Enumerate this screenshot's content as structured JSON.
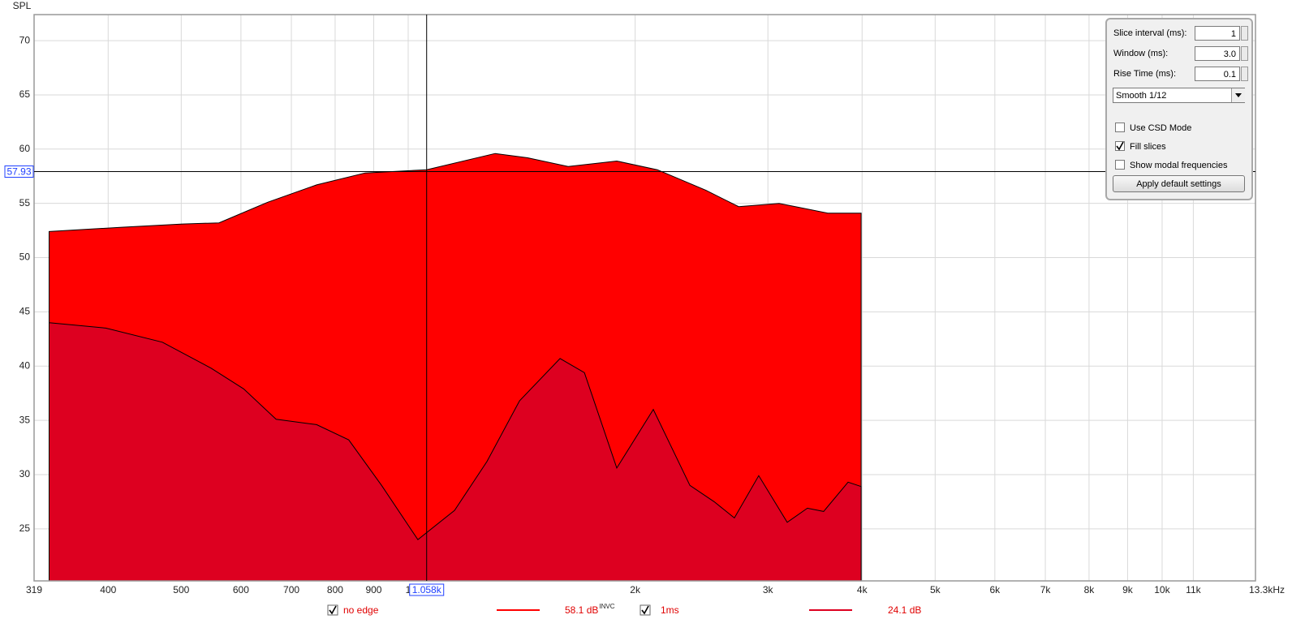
{
  "chart_data": {
    "type": "area",
    "y_label": "SPL",
    "xscale": "log",
    "xlim": [
      319,
      13300
    ],
    "ylim": [
      20.2,
      72.4
    ],
    "xticks": [
      319,
      400,
      500,
      600,
      700,
      800,
      900,
      {
        "value": 1000,
        "label": "1"
      },
      {
        "value": 2000,
        "label": "2k"
      },
      {
        "value": 3000,
        "label": "3k"
      },
      {
        "value": 4000,
        "label": "4k"
      },
      {
        "value": 5000,
        "label": "5k"
      },
      {
        "value": 6000,
        "label": "6k"
      },
      {
        "value": 7000,
        "label": "7k"
      },
      {
        "value": 8000,
        "label": "8k"
      },
      {
        "value": 9000,
        "label": "9k"
      },
      {
        "value": 10000,
        "label": "10k"
      },
      {
        "value": 11000,
        "label": "11k"
      },
      {
        "value": 13300,
        "label": "13.3kHz"
      }
    ],
    "yticks": [
      25,
      30,
      35,
      40,
      45,
      50,
      55,
      60,
      65,
      70
    ],
    "grid": true,
    "cursor": {
      "x": 1058,
      "x_label": "1.058k",
      "y": 57.93
    },
    "series": [
      {
        "name": "no edge",
        "color": "#ff0000",
        "readout": "58.1 dB",
        "readout_sup": "INVC",
        "checked": true,
        "x": [
          334,
          417,
          502,
          561,
          651,
          756,
          877,
          1058,
          1304,
          1440,
          1630,
          1891,
          2140,
          2483,
          2744,
          3104,
          3601,
          3988
        ],
        "values": [
          52.4,
          52.8,
          53.1,
          53.2,
          55.1,
          56.7,
          57.8,
          58.1,
          59.6,
          59.2,
          58.4,
          58.9,
          58.1,
          56.2,
          54.7,
          55.0,
          54.1,
          54.1
        ]
      },
      {
        "name": "1ms",
        "color": "#dd0020",
        "readout": "24.1 dB",
        "checked": true,
        "x": [
          334,
          397,
          472,
          548,
          605,
          668,
          756,
          834,
          922,
          1030,
          1152,
          1272,
          1405,
          1590,
          1713,
          1891,
          2114,
          2364,
          2546,
          2708,
          2917,
          3182,
          3385,
          3557,
          3832,
          3988
        ],
        "values": [
          44.0,
          43.5,
          42.2,
          39.8,
          37.9,
          35.1,
          34.6,
          33.2,
          29.0,
          24.0,
          26.7,
          31.2,
          36.8,
          40.7,
          39.4,
          30.6,
          36.0,
          29.0,
          27.5,
          26.0,
          29.9,
          25.6,
          26.9,
          26.6,
          29.3,
          28.9
        ]
      }
    ]
  },
  "controls": {
    "fields": [
      {
        "label": "Slice interval (ms):",
        "value": "1"
      },
      {
        "label": "Window (ms):",
        "value": "3.0"
      },
      {
        "label": "Rise Time (ms):",
        "value": "0.1"
      }
    ],
    "dropdown": "Smooth 1/12",
    "checkboxes": [
      {
        "label": "Use CSD Mode",
        "checked": false
      },
      {
        "label": "Fill slices",
        "checked": true
      },
      {
        "label": "Show modal frequencies",
        "checked": false
      }
    ],
    "button": "Apply default settings"
  }
}
